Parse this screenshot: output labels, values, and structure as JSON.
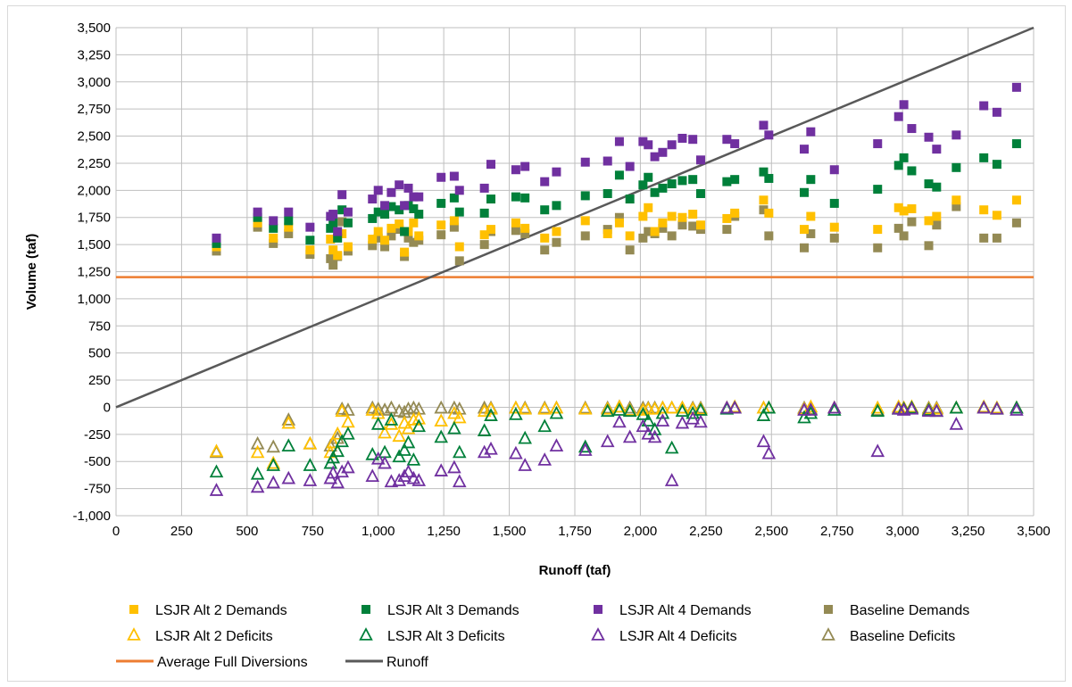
{
  "chart_data": {
    "type": "scatter",
    "title": "",
    "xlabel": "Runoff (taf)",
    "ylabel": "Volume (taf)",
    "xlim": [
      0,
      3500
    ],
    "ylim": [
      -1000,
      3500
    ],
    "x_ticks": [
      "0",
      "250",
      "500",
      "750",
      "1,000",
      "1,250",
      "1,500",
      "1,750",
      "2,000",
      "2,250",
      "2,500",
      "2,750",
      "3,000",
      "3,250",
      "3,500"
    ],
    "y_ticks": [
      "-1,000",
      "-750",
      "-500",
      "-250",
      "0",
      "250",
      "500",
      "750",
      "1,000",
      "1,250",
      "1,500",
      "1,750",
      "2,000",
      "2,250",
      "2,500",
      "2,750",
      "3,000",
      "3,250",
      "3,500"
    ],
    "grid": true,
    "legend_position": "bottom",
    "colors": {
      "alt2": "#ffc000",
      "alt3": "#00803a",
      "alt4": "#7030a0",
      "baseline": "#948a54",
      "avg": "#ed7d31",
      "runoff": "#595959"
    },
    "x": [
      383,
      540,
      600,
      658,
      740,
      818,
      828,
      845,
      862,
      885,
      978,
      1000,
      1025,
      1050,
      1080,
      1100,
      1115,
      1135,
      1155,
      1240,
      1290,
      1310,
      1405,
      1430,
      1525,
      1560,
      1635,
      1680,
      1790,
      1875,
      1920,
      1960,
      2010,
      2030,
      2055,
      2085,
      2120,
      2160,
      2200,
      2230,
      2330,
      2360,
      2470,
      2490,
      2625,
      2650,
      2740,
      2905,
      2985,
      3005,
      3035,
      3100,
      3130,
      3205,
      3310,
      3360,
      3435
    ],
    "series": [
      {
        "name": "LSJR Alt 2 Demands",
        "marker": "square-filled",
        "color": "#ffc000",
        "values": [
          1480,
          1700,
          1560,
          1660,
          1450,
          1550,
          1450,
          1400,
          1600,
          1480,
          1550,
          1620,
          1540,
          1650,
          1690,
          1430,
          1620,
          1700,
          1580,
          1680,
          1720,
          1480,
          1590,
          1640,
          1700,
          1650,
          1560,
          1620,
          1720,
          1600,
          1700,
          1580,
          1760,
          1840,
          1620,
          1700,
          1760,
          1750,
          1780,
          1680,
          1740,
          1790,
          1910,
          1790,
          1640,
          1760,
          1660,
          1640,
          1840,
          1810,
          1830,
          1720,
          1760,
          1910,
          1820,
          1770,
          1910
        ]
      },
      {
        "name": "LSJR Alt 3 Demands",
        "marker": "square-filled",
        "color": "#00803a",
        "values": [
          1510,
          1750,
          1650,
          1720,
          1540,
          1650,
          1700,
          1560,
          1820,
          1700,
          1740,
          1800,
          1780,
          1850,
          1820,
          1620,
          1860,
          1830,
          1780,
          1880,
          1930,
          1800,
          1790,
          1920,
          1940,
          1930,
          1820,
          1860,
          1950,
          1970,
          2140,
          1920,
          2050,
          2120,
          1980,
          2020,
          2060,
          2090,
          2100,
          1970,
          2080,
          2100,
          2170,
          2110,
          1980,
          2100,
          1880,
          2010,
          2230,
          2300,
          2180,
          2060,
          2030,
          2210,
          2300,
          2240,
          2430
        ]
      },
      {
        "name": "LSJR Alt 4 Demands",
        "marker": "square-filled",
        "color": "#7030a0",
        "values": [
          1560,
          1800,
          1720,
          1800,
          1660,
          1760,
          1780,
          1620,
          1960,
          1800,
          1920,
          2000,
          1860,
          1980,
          2050,
          1860,
          2020,
          1940,
          1940,
          2120,
          2130,
          2000,
          2020,
          2240,
          2190,
          2220,
          2080,
          2170,
          2260,
          2270,
          2450,
          2220,
          2450,
          2420,
          2310,
          2350,
          2420,
          2480,
          2470,
          2280,
          2470,
          2430,
          2600,
          2510,
          2380,
          2540,
          2190,
          2430,
          2680,
          2790,
          2570,
          2490,
          2380,
          2510,
          2780,
          2720,
          2950
        ]
      },
      {
        "name": "Baseline Demands",
        "marker": "square-filled",
        "color": "#948a54",
        "values": [
          1440,
          1660,
          1510,
          1600,
          1410,
          1370,
          1310,
          1390,
          1710,
          1440,
          1490,
          1560,
          1480,
          1580,
          1640,
          1390,
          1560,
          1520,
          1540,
          1590,
          1660,
          1350,
          1500,
          1620,
          1630,
          1600,
          1450,
          1520,
          1580,
          1640,
          1750,
          1450,
          1560,
          1620,
          1600,
          1650,
          1580,
          1680,
          1670,
          1640,
          1640,
          1760,
          1820,
          1580,
          1470,
          1600,
          1560,
          1470,
          1650,
          1580,
          1710,
          1490,
          1680,
          1850,
          1560,
          1560,
          1700
        ]
      },
      {
        "name": "LSJR Alt 2 Deficits",
        "marker": "triangle-open",
        "color": "#ffc000",
        "values": [
          -410,
          -420,
          -520,
          -150,
          -340,
          -420,
          -330,
          -250,
          -40,
          -140,
          -30,
          -60,
          -240,
          -160,
          -270,
          -150,
          -200,
          -120,
          -110,
          -130,
          -60,
          -100,
          -40,
          -20,
          -10,
          -20,
          -20,
          -10,
          -20,
          -20,
          0,
          -30,
          -30,
          -20,
          -20,
          -10,
          -10,
          -10,
          -20,
          -20,
          -10,
          0,
          -10,
          -10,
          -20,
          0,
          -10,
          -10,
          0,
          -10,
          0,
          -20,
          -20,
          -10,
          0,
          -10,
          -10
        ]
      },
      {
        "name": "LSJR Alt 3 Deficits",
        "marker": "triangle-open",
        "color": "#00803a",
        "values": [
          -600,
          -620,
          -540,
          -360,
          -540,
          -520,
          -470,
          -410,
          -320,
          -250,
          -440,
          -160,
          -420,
          -120,
          -460,
          -400,
          -330,
          -490,
          -180,
          -280,
          -200,
          -420,
          -220,
          -80,
          -70,
          -290,
          -180,
          -60,
          -370,
          -40,
          -30,
          -40,
          -70,
          -130,
          -210,
          -60,
          -380,
          -40,
          -60,
          -30,
          -20,
          -10,
          -80,
          -10,
          -100,
          -60,
          -30,
          -40,
          -20,
          -20,
          -10,
          -30,
          -40,
          -10,
          -10,
          -20,
          -10
        ]
      },
      {
        "name": "LSJR Alt 4 Deficits",
        "marker": "triangle-open",
        "color": "#7030a0",
        "values": [
          -770,
          -740,
          -700,
          -660,
          -680,
          -660,
          -610,
          -700,
          -600,
          -560,
          -640,
          -480,
          -520,
          -690,
          -680,
          -640,
          -600,
          -660,
          -680,
          -590,
          -560,
          -690,
          -420,
          -390,
          -430,
          -540,
          -490,
          -360,
          -400,
          -320,
          -140,
          -280,
          -180,
          -250,
          -280,
          -130,
          -680,
          -150,
          -110,
          -140,
          -10,
          -10,
          -320,
          -430,
          -30,
          -30,
          -10,
          -410,
          -20,
          -30,
          -20,
          -40,
          -40,
          -160,
          -10,
          -20,
          -30
        ]
      },
      {
        "name": "Baseline Deficits",
        "marker": "triangle-open",
        "color": "#948a54",
        "values": [
          -420,
          -340,
          -370,
          -120,
          -340,
          -360,
          -330,
          -290,
          -20,
          -30,
          -10,
          -20,
          -30,
          -10,
          -40,
          -50,
          -20,
          -10,
          -20,
          -10,
          -10,
          -20,
          -10,
          -10,
          -10,
          -10,
          -10,
          -10,
          -10,
          -10,
          0,
          -10,
          -10,
          -10,
          -10,
          -10,
          -10,
          -10,
          -10,
          -10,
          -10,
          -10,
          -10,
          -10,
          -10,
          -20,
          -10,
          -30,
          -10,
          -10,
          -10,
          -10,
          -10,
          -10,
          -10,
          -10,
          -10
        ]
      }
    ],
    "lines": [
      {
        "name": "Average Full Diversions",
        "color": "#ed7d31",
        "points": [
          [
            0,
            1200
          ],
          [
            3500,
            1200
          ]
        ]
      },
      {
        "name": "Runoff",
        "color": "#595959",
        "points": [
          [
            0,
            0
          ],
          [
            3500,
            3500
          ]
        ]
      }
    ]
  }
}
